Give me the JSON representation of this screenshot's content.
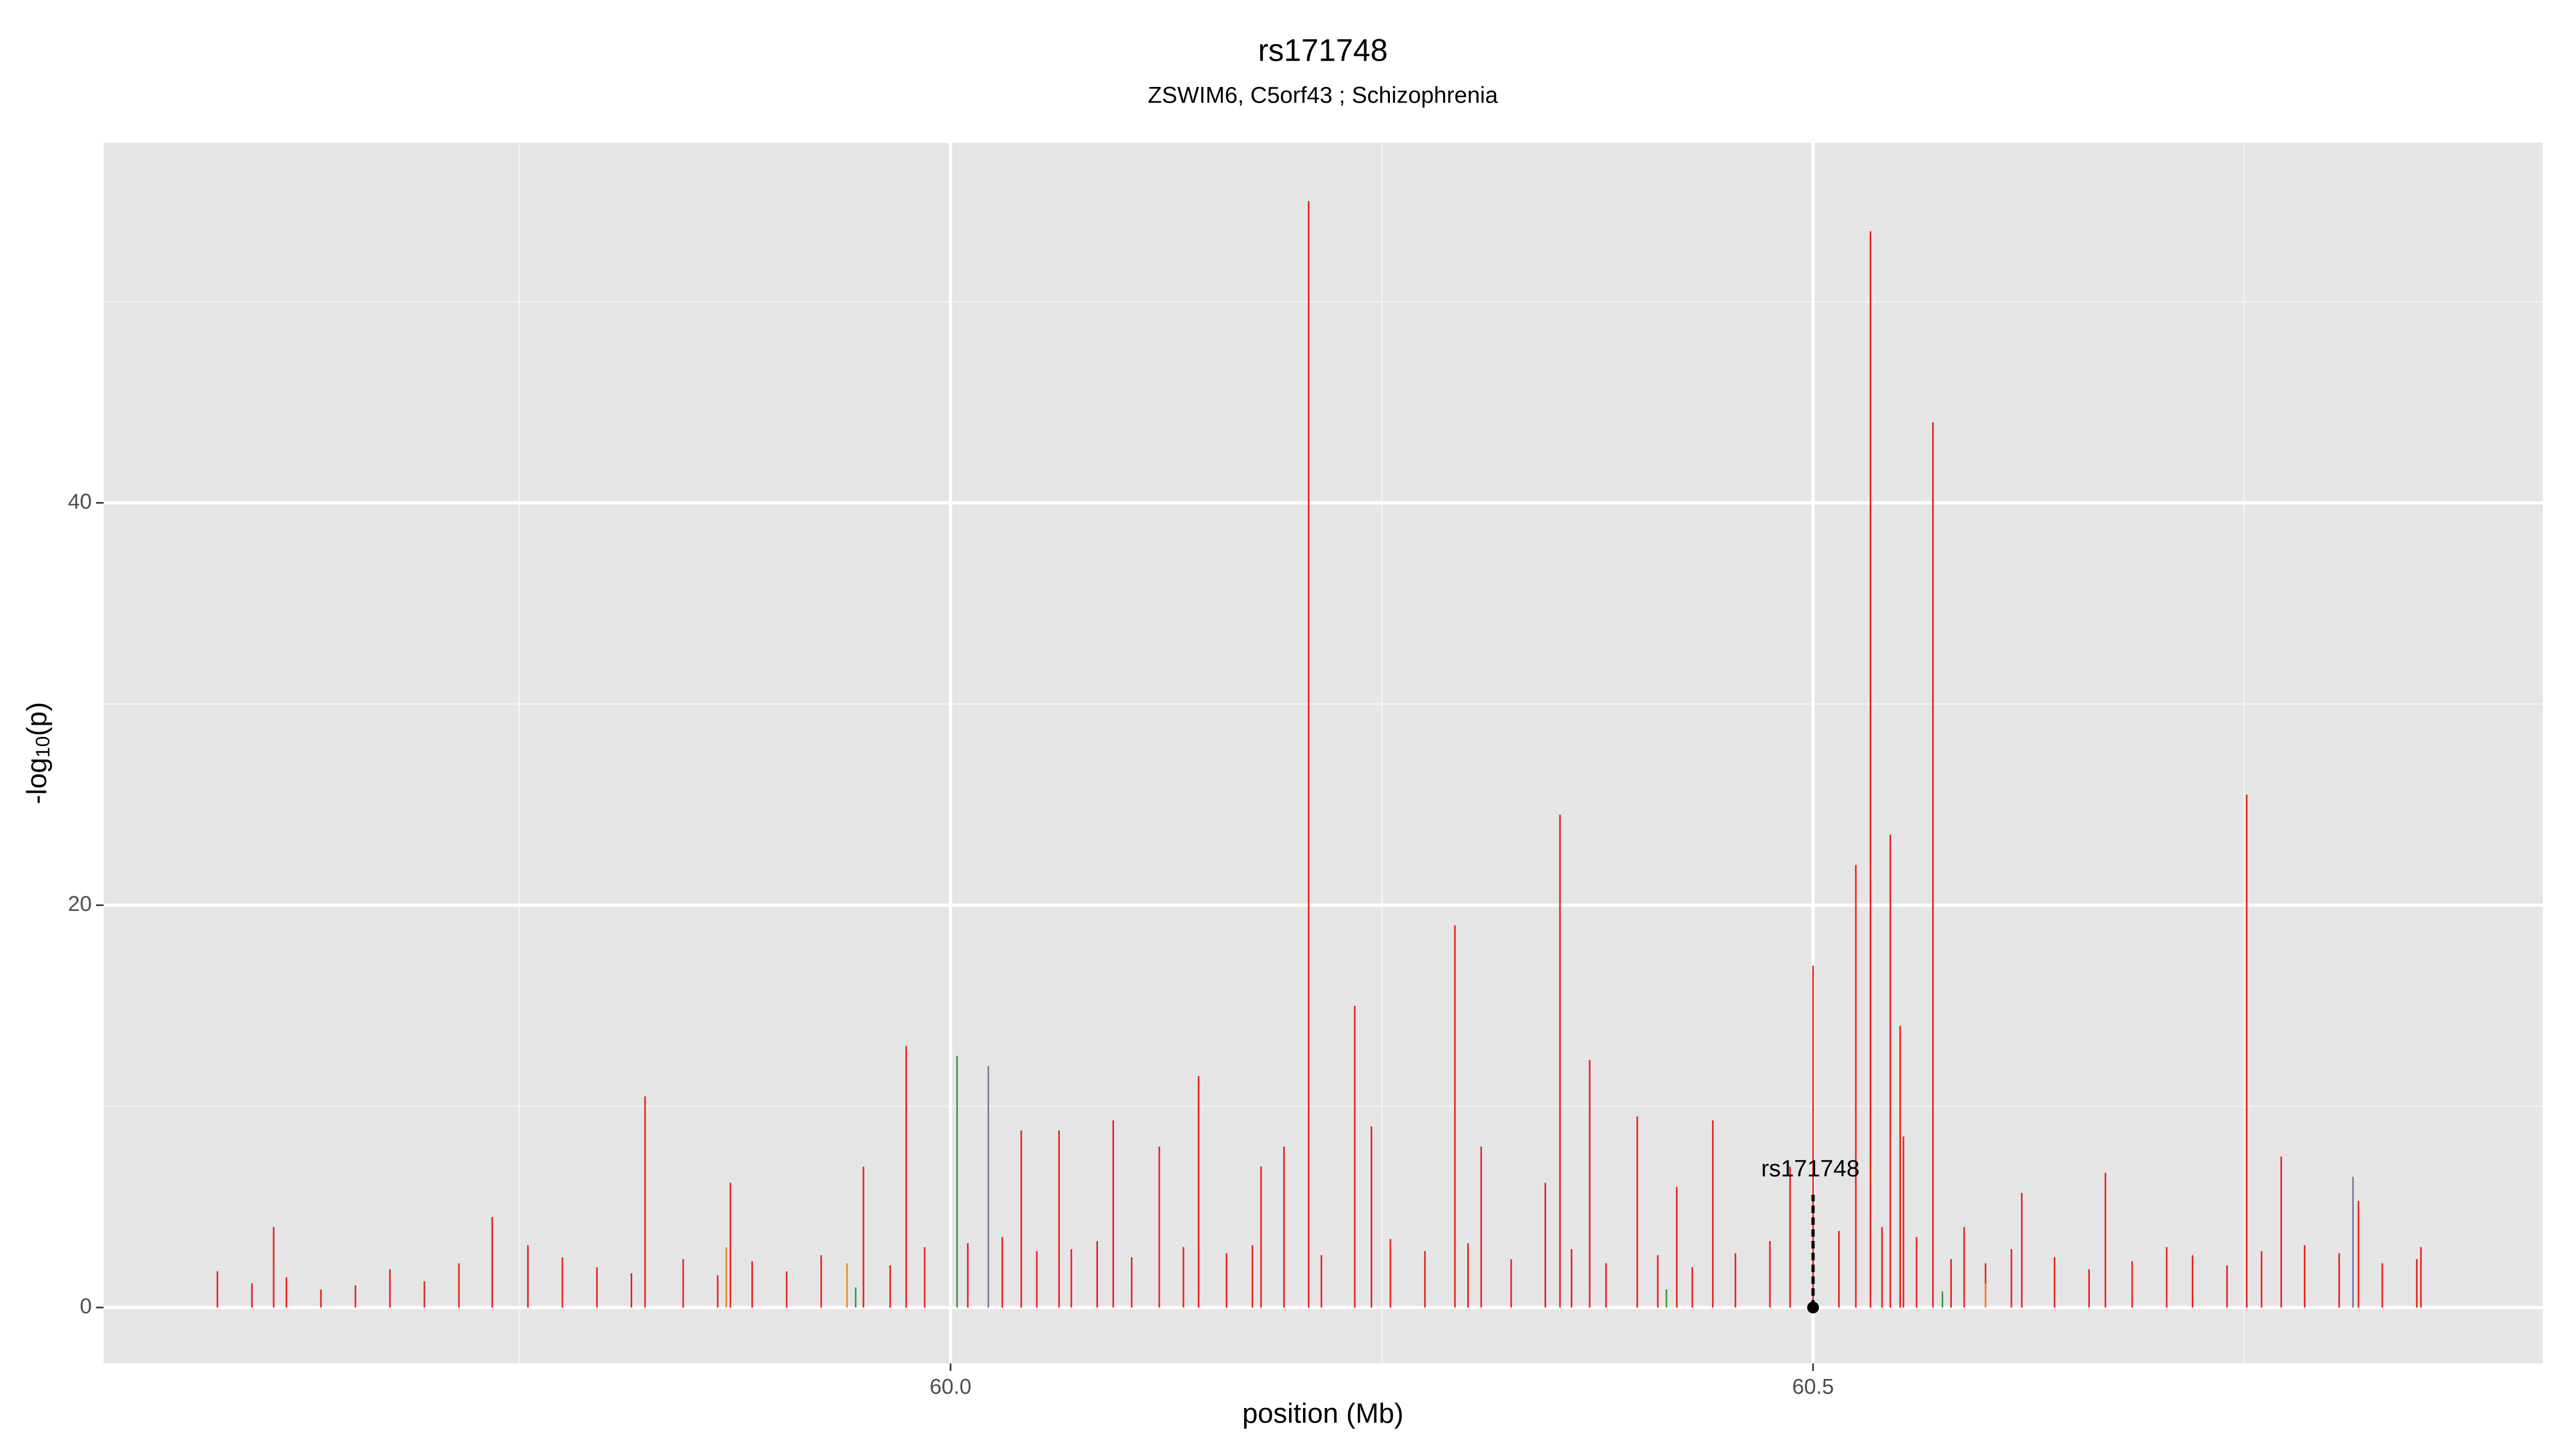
{
  "chart_data": {
    "type": "spike",
    "title": "rs171748",
    "subtitle": "ZSWIM6, C5orf43 ; Schizophrenia",
    "xlabel": "position (Mb)",
    "ylabel": [
      "-log",
      "10",
      "(p)"
    ],
    "xlim": [
      59.509,
      60.923
    ],
    "ylim": [
      -2.78,
      57.9
    ],
    "xticks": [
      {
        "value": 60,
        "label": "60.0"
      },
      {
        "value": 60.5,
        "label": "60.5"
      }
    ],
    "xminor": [
      59.75,
      60.25,
      60.75
    ],
    "yticks": [
      0,
      20,
      40
    ],
    "yminor": [
      10,
      30,
      50
    ],
    "grid": true,
    "series": [
      {
        "color": "#e8231c",
        "x": [
          60.2076,
          60.5333,
          60.5695,
          60.7514,
          60.3533,
          60.5248,
          60.5448,
          60.2924,
          60.5,
          60.2343,
          60.5505,
          59.9743,
          60.3705,
          60.1438,
          59.8229,
          60.3981,
          60.4419,
          60.0943,
          60.244,
          60.5524,
          60.0629,
          60.041,
          60.3076,
          60.121,
          60.7714,
          59.8724,
          59.9495,
          59.7343,
          59.6076,
          60.6695,
          60.5876,
          60.621,
          60.8162,
          60.18,
          60.1933,
          60.3448,
          60.421,
          60.4867,
          60.8524,
          59.575,
          59.595,
          59.615,
          59.635,
          59.655,
          59.675,
          59.695,
          59.715,
          59.755,
          59.775,
          59.795,
          59.815,
          59.845,
          59.865,
          59.885,
          59.905,
          59.925,
          59.965,
          59.985,
          60.01,
          60.03,
          60.05,
          60.07,
          60.085,
          60.105,
          60.135,
          60.16,
          60.175,
          60.215,
          60.255,
          60.275,
          60.3,
          60.325,
          60.36,
          60.38,
          60.41,
          60.43,
          60.455,
          60.475,
          60.515,
          60.54,
          60.56,
          60.58,
          60.6,
          60.615,
          60.64,
          60.66,
          60.685,
          60.705,
          60.72,
          60.74,
          60.76,
          60.785,
          60.805,
          60.83,
          60.85
        ],
        "values": [
          55,
          53.5,
          44,
          25.5,
          24.5,
          22,
          23.5,
          19,
          17,
          15,
          14,
          13,
          12.3,
          11.5,
          10.5,
          9.5,
          9.3,
          9.3,
          9,
          8.5,
          8.8,
          8.8,
          8,
          8,
          7.5,
          6.2,
          7,
          4.5,
          4,
          6.7,
          4,
          5.7,
          5.3,
          7,
          8,
          6.2,
          6,
          7,
          3,
          1.8,
          1.2,
          1.5,
          0.9,
          1.1,
          1.9,
          1.3,
          2.2,
          3.1,
          2.5,
          2.0,
          1.7,
          2.4,
          1.6,
          2.3,
          1.8,
          2.6,
          2.1,
          3.0,
          3.2,
          3.5,
          2.8,
          2.9,
          3.3,
          2.5,
          3.0,
          2.7,
          3.1,
          2.6,
          3.4,
          2.8,
          3.2,
          2.4,
          2.9,
          2.2,
          2.6,
          2.0,
          2.7,
          3.3,
          3.8,
          4.0,
          3.5,
          2.4,
          2.2,
          2.9,
          2.5,
          1.9,
          2.3,
          3.0,
          2.6,
          2.1,
          2.8,
          3.1,
          2.7,
          2.2,
          2.4
        ]
      },
      {
        "color": "#3a9a3a",
        "x": [
          60.0038,
          59.945,
          60.415,
          60.575
        ],
        "values": [
          12.5,
          1.0,
          0.9,
          0.8
        ]
      },
      {
        "color": "#7a7aa0",
        "x": [
          60.0219,
          60.813
        ],
        "values": [
          12,
          6.5
        ]
      },
      {
        "color": "#f08a1c",
        "x": [
          59.87,
          60.6,
          59.94
        ],
        "values": [
          3,
          1.2,
          2.2
        ]
      }
    ],
    "annotations": [
      {
        "text": "rs171748",
        "x": 60.5,
        "y": 0
      }
    ]
  }
}
